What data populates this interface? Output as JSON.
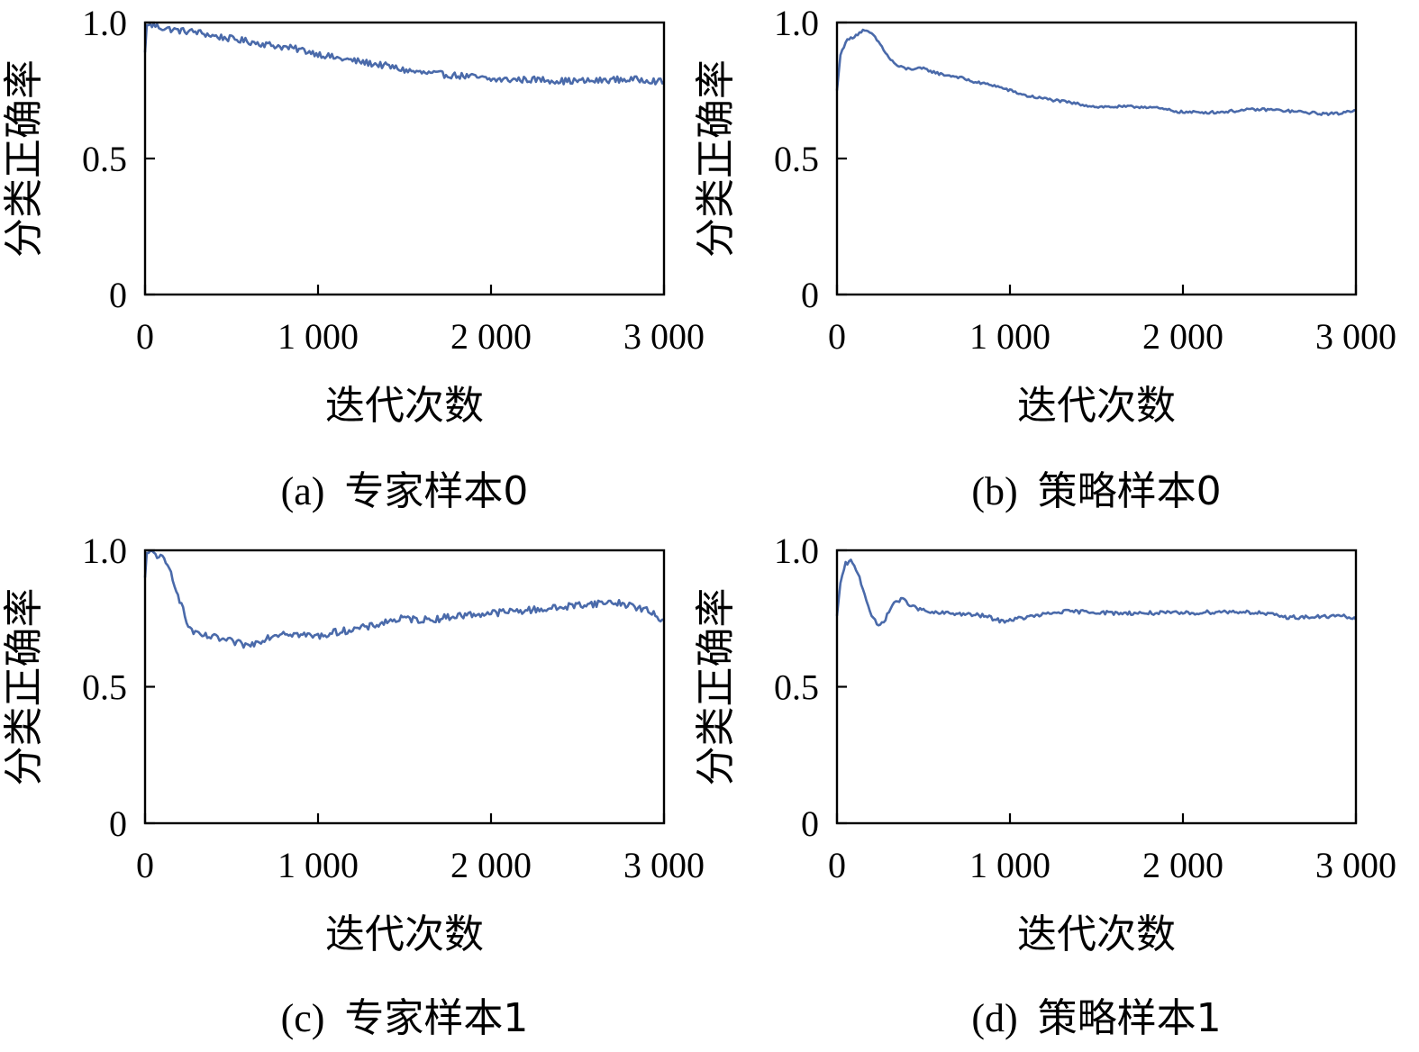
{
  "line_color": "#4a6aaa",
  "chart_data": [
    {
      "type": "line",
      "caption_tag": "(a)",
      "caption": "专家样本0",
      "xlabel": "迭代次数",
      "ylabel": "分类正确率",
      "xlim": [
        0,
        3000
      ],
      "ylim": [
        0,
        1.0
      ],
      "xticks": [
        0,
        1000,
        2000,
        3000
      ],
      "xtick_labels": [
        "0",
        "1 000",
        "2 000",
        "3 000"
      ],
      "yticks": [
        0,
        0.5,
        1.0
      ],
      "ytick_labels": [
        "0",
        "0.5",
        "1.0"
      ],
      "series": [
        {
          "x": [
            0,
            10,
            50,
            100,
            200,
            300,
            400,
            500,
            600,
            700,
            800,
            900,
            1000,
            1100,
            1200,
            1300,
            1400,
            1500,
            1600,
            1700,
            1800,
            1900,
            2000,
            2100,
            2200,
            2300,
            2400,
            2500,
            2600,
            2700,
            2800,
            2900,
            3000
          ],
          "y": [
            0.89,
            0.99,
            0.99,
            0.98,
            0.97,
            0.965,
            0.95,
            0.94,
            0.93,
            0.92,
            0.91,
            0.9,
            0.885,
            0.87,
            0.86,
            0.85,
            0.84,
            0.825,
            0.815,
            0.81,
            0.805,
            0.8,
            0.79,
            0.79,
            0.79,
            0.79,
            0.785,
            0.785,
            0.785,
            0.79,
            0.79,
            0.79,
            0.78
          ],
          "noise": 0.012
        }
      ]
    },
    {
      "type": "line",
      "caption_tag": "(b)",
      "caption": "策略样本0",
      "xlabel": "迭代次数",
      "ylabel": "分类正确率",
      "xlim": [
        0,
        3000
      ],
      "ylim": [
        0,
        1.0
      ],
      "xticks": [
        0,
        1000,
        2000,
        3000
      ],
      "xtick_labels": [
        "0",
        "1 000",
        "2 000",
        "3 000"
      ],
      "yticks": [
        0,
        0.5,
        1.0
      ],
      "ytick_labels": [
        "0",
        "0.5",
        "1.0"
      ],
      "series": [
        {
          "x": [
            0,
            20,
            50,
            100,
            150,
            200,
            250,
            300,
            350,
            400,
            500,
            600,
            700,
            800,
            900,
            1000,
            1100,
            1200,
            1300,
            1400,
            1500,
            1600,
            1700,
            1800,
            1900,
            2000,
            2100,
            2200,
            2300,
            2400,
            2500,
            2600,
            2700,
            2800,
            2900,
            3000
          ],
          "y": [
            0.75,
            0.88,
            0.93,
            0.95,
            0.97,
            0.96,
            0.92,
            0.87,
            0.84,
            0.83,
            0.83,
            0.81,
            0.8,
            0.78,
            0.77,
            0.75,
            0.73,
            0.72,
            0.71,
            0.7,
            0.69,
            0.69,
            0.69,
            0.69,
            0.68,
            0.67,
            0.67,
            0.67,
            0.675,
            0.68,
            0.68,
            0.675,
            0.67,
            0.665,
            0.665,
            0.68
          ],
          "noise": 0.005
        }
      ]
    },
    {
      "type": "line",
      "caption_tag": "(c)",
      "caption": "专家样本1",
      "xlabel": "迭代次数",
      "ylabel": "分类正确率",
      "xlim": [
        0,
        3000
      ],
      "ylim": [
        0,
        1.0
      ],
      "xticks": [
        0,
        1000,
        2000,
        3000
      ],
      "xtick_labels": [
        "0",
        "1 000",
        "2 000",
        "3 000"
      ],
      "yticks": [
        0,
        0.5,
        1.0
      ],
      "ytick_labels": [
        "0",
        "0.5",
        "1.0"
      ],
      "series": [
        {
          "x": [
            0,
            10,
            50,
            100,
            150,
            200,
            250,
            300,
            400,
            500,
            600,
            700,
            800,
            900,
            1000,
            1100,
            1200,
            1300,
            1400,
            1500,
            1600,
            1700,
            1800,
            1900,
            2000,
            2100,
            2200,
            2300,
            2400,
            2500,
            2600,
            2700,
            2800,
            2900,
            3000
          ],
          "y": [
            0.9,
            0.99,
            0.99,
            0.97,
            0.92,
            0.82,
            0.72,
            0.69,
            0.68,
            0.665,
            0.65,
            0.68,
            0.7,
            0.69,
            0.685,
            0.7,
            0.71,
            0.72,
            0.74,
            0.75,
            0.745,
            0.75,
            0.76,
            0.765,
            0.77,
            0.775,
            0.78,
            0.785,
            0.79,
            0.8,
            0.805,
            0.81,
            0.8,
            0.78,
            0.74
          ],
          "noise": 0.013
        }
      ]
    },
    {
      "type": "line",
      "caption_tag": "(d)",
      "caption": "策略样本1",
      "xlabel": "迭代次数",
      "ylabel": "分类正确率",
      "xlim": [
        0,
        3000
      ],
      "ylim": [
        0,
        1.0
      ],
      "xticks": [
        0,
        1000,
        2000,
        3000
      ],
      "xtick_labels": [
        "0",
        "1 000",
        "2 000",
        "3 000"
      ],
      "yticks": [
        0,
        0.5,
        1.0
      ],
      "ytick_labels": [
        "0",
        "0.5",
        "1.0"
      ],
      "series": [
        {
          "x": [
            0,
            20,
            50,
            80,
            120,
            160,
            200,
            240,
            280,
            330,
            380,
            450,
            550,
            650,
            750,
            850,
            950,
            1050,
            1150,
            1300,
            1450,
            1600,
            1750,
            1900,
            2050,
            2200,
            2350,
            2450,
            2600,
            2750,
            2900,
            3000
          ],
          "y": [
            0.76,
            0.88,
            0.95,
            0.96,
            0.92,
            0.84,
            0.76,
            0.72,
            0.75,
            0.81,
            0.82,
            0.79,
            0.77,
            0.77,
            0.765,
            0.76,
            0.74,
            0.75,
            0.76,
            0.775,
            0.775,
            0.77,
            0.77,
            0.77,
            0.77,
            0.775,
            0.775,
            0.77,
            0.755,
            0.755,
            0.76,
            0.75
          ],
          "noise": 0.007
        }
      ]
    }
  ]
}
